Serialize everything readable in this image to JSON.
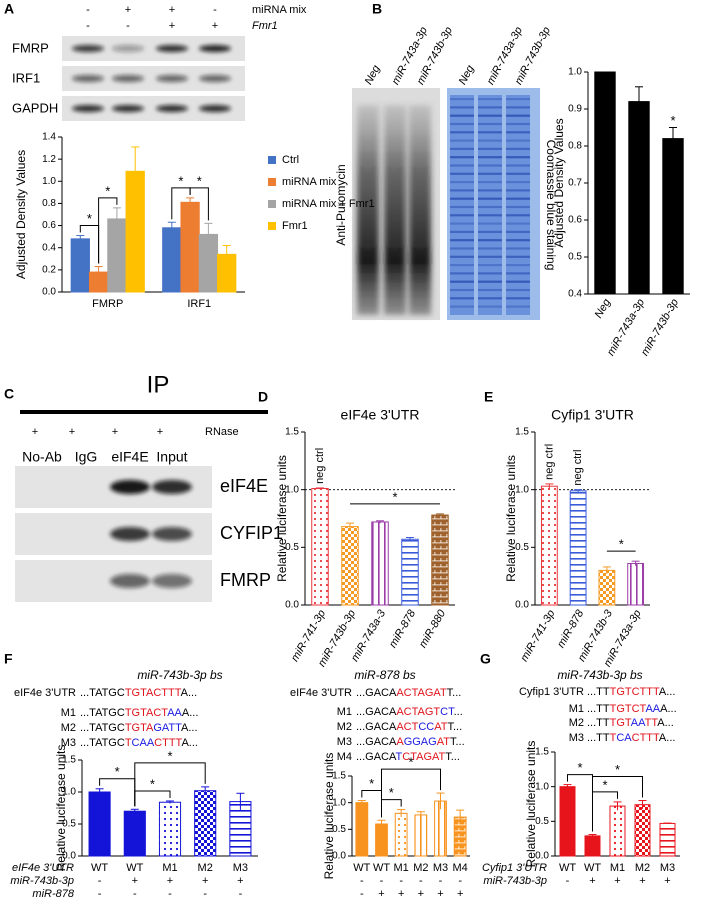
{
  "panel_labels": [
    "A",
    "B",
    "C",
    "D",
    "E",
    "F",
    "G"
  ],
  "blots": {
    "A": {
      "column_rows": [
        {
          "name": "miRNA mix",
          "marks": [
            "-",
            "+",
            "+",
            "-"
          ]
        },
        {
          "name": "Fmr1",
          "marks": [
            "-",
            "-",
            "+",
            "+"
          ]
        }
      ],
      "rows": [
        "FMRP",
        "IRF1",
        "GAPDH"
      ]
    },
    "B": {
      "lanes": [
        "Neg",
        "miR-743a-3p",
        "miR-743b-3p",
        "Neg",
        "miR-743a-3p",
        "miR-743b-3p"
      ],
      "left_label": "Anti-Puromycin",
      "right_label": "Coomassie blue staining"
    },
    "C": {
      "title": "IP",
      "treatment": {
        "name": "RNase",
        "marks": [
          "+",
          "+",
          "+",
          "+"
        ]
      },
      "lanes": [
        "No-Ab",
        "IgG",
        "eIF4E",
        "Input"
      ],
      "rows": [
        "eIF4E",
        "CYFIP1",
        "FMRP"
      ]
    }
  },
  "chart_data": [
    {
      "type": "bar",
      "ylabel": "Adjusted Density Values",
      "categories": [
        "FMRP",
        "IRF1"
      ],
      "series": [
        {
          "name": "Ctrl",
          "color": "#4472c4",
          "values": [
            0.48,
            0.58
          ],
          "errors": [
            0.03,
            0.05
          ]
        },
        {
          "name": "miRNA mix",
          "color": "#ed7d31",
          "values": [
            0.18,
            0.81
          ],
          "errors": [
            0.05,
            0.04
          ]
        },
        {
          "name": "miRNA mix + Fmr1",
          "color": "#a5a5a5",
          "values": [
            0.66,
            0.52
          ],
          "errors": [
            0.1,
            0.1
          ]
        },
        {
          "name": "Fmr1",
          "color": "#ffc000",
          "values": [
            1.09,
            0.34
          ],
          "errors": [
            0.22,
            0.08
          ]
        }
      ],
      "ylim": [
        0,
        1.4
      ],
      "yticks": [
        {
          "value": 0,
          "label": "0.0"
        },
        0.2,
        0.4,
        0.6,
        0.8,
        {
          "value": 1,
          "label": "1.0"
        },
        1.2,
        1.4
      ],
      "legend": "right",
      "significance": [
        "*",
        "*",
        "*",
        "*"
      ]
    },
    {
      "type": "bar",
      "ylabel": "Adjusted Density Values",
      "categories": [
        "Neg",
        "miR-743a-3p",
        "miR-743b-3p"
      ],
      "values": [
        1.0,
        0.92,
        0.82
      ],
      "errors": [
        0,
        0.04,
        0.03
      ],
      "color": "#000000",
      "ylim": [
        0.4,
        1.0
      ],
      "yticks": [
        0.4,
        0.5,
        0.6,
        0.7,
        0.8,
        0.9,
        {
          "value": 1,
          "label": "1.0"
        }
      ],
      "significance": [
        "*"
      ]
    },
    {
      "type": "bar",
      "title": "eIF4e 3'UTR",
      "ylabel": "Relative luciferase units",
      "categories": [
        "miR-741-3p",
        "miR-743b-3p",
        "miR-743a-3",
        "miR-878",
        "miR-880"
      ],
      "values": [
        1.01,
        0.68,
        0.72,
        0.57,
        0.78
      ],
      "errors": [
        0.005,
        0.03,
        0.01,
        0.015,
        0.01
      ],
      "colors": [
        "#e8373c",
        "#f59a23",
        "#9b3ea8",
        "#3a5bd9",
        "#a0622d"
      ],
      "patterns": [
        "dots",
        "checker",
        "vlines",
        "hlines",
        "brick"
      ],
      "reference_line": 1,
      "bar_labels": [
        "neg ctrl",
        null,
        null,
        null,
        null
      ],
      "ylim": [
        0,
        1.5
      ],
      "yticks": [
        {
          "value": 0,
          "label": "0.0"
        },
        0.5,
        {
          "value": 1,
          "label": "1.0"
        },
        1.5
      ],
      "significance": [
        "*"
      ]
    },
    {
      "type": "bar",
      "title": "Cyfip1 3'UTR",
      "ylabel": "Relative luciferase units",
      "categories": [
        "miR-741-3p",
        "miR-878",
        "miR-743b-3",
        "miR-743a-3p"
      ],
      "values": [
        1.03,
        0.99,
        0.3,
        0.36
      ],
      "errors": [
        0.02,
        0.01,
        0.03,
        0.02
      ],
      "colors": [
        "#e8373c",
        "#3a5bd9",
        "#f59a23",
        "#9b3ea8"
      ],
      "patterns": [
        "dots",
        "hlines",
        "checker",
        "vlines"
      ],
      "reference_line": 1,
      "bar_labels": [
        "neg ctrl",
        "neg ctrl",
        null,
        null
      ],
      "ylim": [
        0,
        1.5
      ],
      "yticks": [
        {
          "value": 0,
          "label": "0.0"
        },
        0.5,
        {
          "value": 1,
          "label": "1.0"
        },
        1.5
      ],
      "significance": [
        "*"
      ]
    },
    {
      "type": "bar",
      "site_title": "miR-743b-3p bs",
      "sequences": [
        {
          "name": "eIF4e 3'UTR",
          "parts": [
            {
              "text": "...TATGC",
              "color": "#000000"
            },
            {
              "text": "TGTACTTT",
              "color": "#e0141c"
            },
            {
              "text": "A...",
              "color": "#000000"
            }
          ]
        },
        {
          "name": "M1",
          "parts": [
            {
              "text": "...TATGC",
              "color": "#000000"
            },
            {
              "text": "TGTACT",
              "color": "#e0141c"
            },
            {
              "text": "AA",
              "color": "#1a1ae0"
            },
            {
              "text": "A...",
              "color": "#000000"
            }
          ]
        },
        {
          "name": "M2",
          "parts": [
            {
              "text": "...TATGC",
              "color": "#000000"
            },
            {
              "text": "TGTA",
              "color": "#e0141c"
            },
            {
              "text": "GATT",
              "color": "#1a1ae0"
            },
            {
              "text": "A...",
              "color": "#000000"
            }
          ]
        },
        {
          "name": "M3",
          "parts": [
            {
              "text": "...TATGC",
              "color": "#000000"
            },
            {
              "text": "T",
              "color": "#e0141c"
            },
            {
              "text": "CAA",
              "color": "#1a1ae0"
            },
            {
              "text": "CTTT",
              "color": "#e0141c"
            },
            {
              "text": "A...",
              "color": "#000000"
            }
          ]
        }
      ],
      "ylabel": "Relative luciferase units",
      "categories": [
        "WT",
        "WT",
        "M1",
        "M2",
        "M3"
      ],
      "category_row_name": "eIF4e 3'UTR",
      "treatment_rows": [
        {
          "name": "miR-743b-3p",
          "marks": [
            "-",
            "+",
            "+",
            "+",
            "+"
          ]
        },
        {
          "name": "miR-878",
          "marks": [
            "-",
            "-",
            "-",
            "-",
            "-"
          ]
        }
      ],
      "values": [
        1.0,
        0.7,
        0.84,
        1.02,
        0.85
      ],
      "errors": [
        0.05,
        0.03,
        0.02,
        0.06,
        0.13
      ],
      "color": "#1414d8",
      "patterns": [
        "solid",
        "solid",
        "dots",
        "checker",
        "hlines"
      ],
      "ylim": [
        0,
        1.5
      ],
      "yticks": [
        {
          "value": 0,
          "label": "0.0"
        },
        0.5,
        {
          "value": 1,
          "label": "1.0"
        },
        1.5
      ],
      "significance": [
        "*",
        "*",
        "*"
      ]
    },
    {
      "type": "bar",
      "site_title": "miR-878 bs",
      "sequences": [
        {
          "name": "eIF4e 3'UTR",
          "parts": [
            {
              "text": "...GACA",
              "color": "#000000"
            },
            {
              "text": "ACTAGAT",
              "color": "#e0141c"
            },
            {
              "text": "T...",
              "color": "#000000"
            }
          ]
        },
        {
          "name": "M1",
          "parts": [
            {
              "text": "...GACA",
              "color": "#000000"
            },
            {
              "text": "ACTAGT",
              "color": "#e0141c"
            },
            {
              "text": "CT",
              "color": "#1a1ae0"
            },
            {
              "text": "...",
              "color": "#000000"
            }
          ]
        },
        {
          "name": "M2",
          "parts": [
            {
              "text": "...GACA",
              "color": "#000000"
            },
            {
              "text": "ACT",
              "color": "#e0141c"
            },
            {
              "text": "CC",
              "color": "#1a1ae0"
            },
            {
              "text": "AT",
              "color": "#e0141c"
            },
            {
              "text": "T...",
              "color": "#000000"
            }
          ]
        },
        {
          "name": "M3",
          "parts": [
            {
              "text": "...GACA",
              "color": "#000000"
            },
            {
              "text": "A",
              "color": "#e0141c"
            },
            {
              "text": "GGAG",
              "color": "#1a1ae0"
            },
            {
              "text": "AT",
              "color": "#e0141c"
            },
            {
              "text": "T...",
              "color": "#000000"
            }
          ]
        },
        {
          "name": "M4",
          "parts": [
            {
              "text": "...GACA",
              "color": "#000000"
            },
            {
              "text": "T",
              "color": "#1a1ae0"
            },
            {
              "text": "CTAGAT",
              "color": "#e0141c"
            },
            {
              "text": "T...",
              "color": "#000000"
            }
          ]
        }
      ],
      "ylabel": "Relative luciferase units",
      "categories": [
        "WT",
        "WT",
        "M1",
        "M2",
        "M3",
        "M4"
      ],
      "treatment_rows": [
        {
          "marks": [
            "-",
            "-",
            "-",
            "-",
            "-",
            "-"
          ]
        },
        {
          "marks": [
            "-",
            "+",
            "+",
            "+",
            "+",
            "+"
          ]
        }
      ],
      "values": [
        1.0,
        0.6,
        0.8,
        0.77,
        1.03,
        0.73
      ],
      "errors": [
        0.04,
        0.07,
        0.07,
        0.06,
        0.15,
        0.13
      ],
      "color": "#f7931e",
      "patterns": [
        "solid",
        "solid",
        "dots",
        "vlines",
        "vlines",
        "brick"
      ],
      "ylim": [
        0,
        1.5
      ],
      "yticks": [
        {
          "value": 0,
          "label": "0.0"
        },
        0.5,
        {
          "value": 1,
          "label": "1.0"
        },
        1.5
      ],
      "significance": [
        "*",
        "*",
        "*"
      ]
    },
    {
      "type": "bar",
      "site_title": "miR-743b-3p bs",
      "sequences": [
        {
          "name": "Cyfip1 3'UTR",
          "parts": [
            {
              "text": "...TT",
              "color": "#000000"
            },
            {
              "text": "TGTCTTT",
              "color": "#e0141c"
            },
            {
              "text": "A...",
              "color": "#000000"
            }
          ]
        },
        {
          "name": "M1",
          "parts": [
            {
              "text": "...TT",
              "color": "#000000"
            },
            {
              "text": "TGTCT",
              "color": "#e0141c"
            },
            {
              "text": "AA",
              "color": "#1a1ae0"
            },
            {
              "text": "A...",
              "color": "#000000"
            }
          ]
        },
        {
          "name": "M2",
          "parts": [
            {
              "text": "...TT",
              "color": "#000000"
            },
            {
              "text": "TGT",
              "color": "#e0141c"
            },
            {
              "text": "AA",
              "color": "#1a1ae0"
            },
            {
              "text": "TT",
              "color": "#e0141c"
            },
            {
              "text": "A...",
              "color": "#000000"
            }
          ]
        },
        {
          "name": "M3",
          "parts": [
            {
              "text": "...TT",
              "color": "#000000"
            },
            {
              "text": "T",
              "color": "#e0141c"
            },
            {
              "text": "CA",
              "color": "#1a1ae0"
            },
            {
              "text": "CTTT",
              "color": "#e0141c"
            },
            {
              "text": "A...",
              "color": "#000000"
            }
          ]
        }
      ],
      "ylabel": "Relative luciferase units",
      "categories": [
        "WT",
        "WT",
        "M1",
        "M2",
        "M3"
      ],
      "category_row_name": "Cyfip1 3'UTR",
      "treatment_rows": [
        {
          "name": "miR-743b-3p",
          "marks": [
            "-",
            "+",
            "+",
            "+",
            "+"
          ]
        }
      ],
      "values": [
        1.0,
        0.29,
        0.72,
        0.74,
        0.47
      ],
      "errors": [
        0.03,
        0.02,
        0.06,
        0.06,
        0.005
      ],
      "color": "#e8141c",
      "patterns": [
        "solid",
        "solid",
        "dots",
        "checker",
        "hlines"
      ],
      "ylim": [
        0,
        1.5
      ],
      "yticks": [
        {
          "value": 0,
          "label": "0.0"
        },
        0.5,
        {
          "value": 1,
          "label": "1.0"
        },
        1.5
      ],
      "significance": [
        "*",
        "*",
        "*"
      ]
    }
  ]
}
